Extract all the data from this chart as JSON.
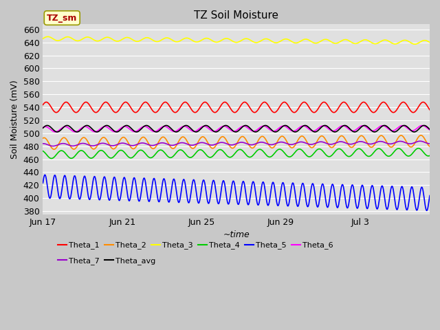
{
  "title": "TZ Soil Moisture",
  "ylabel": "Soil Moisture (mV)",
  "xlabel": "~time",
  "ylim": [
    375,
    668
  ],
  "yticks": [
    380,
    400,
    420,
    440,
    460,
    480,
    500,
    520,
    540,
    560,
    580,
    600,
    620,
    640,
    660
  ],
  "bg_color": "#e0e0e0",
  "fig_bg": "#c8c8c8",
  "n_days": 19.5,
  "series": [
    {
      "name": "Theta_1",
      "color": "#ff0000",
      "base": 540,
      "amp": 8,
      "freq": 1.0,
      "trend": 0.0,
      "phase": 0.5
    },
    {
      "name": "Theta_2",
      "color": "#ff8c00",
      "base": 484,
      "amp": 9,
      "freq": 1.0,
      "trend": 0.2,
      "phase": 1.2
    },
    {
      "name": "Theta_3",
      "color": "#ffff00",
      "base": 646,
      "amp": 3,
      "freq": 1.0,
      "trend": -0.3,
      "phase": 0.0
    },
    {
      "name": "Theta_4",
      "color": "#00cc00",
      "base": 467,
      "amp": 6,
      "freq": 1.0,
      "trend": 0.2,
      "phase": 2.0
    },
    {
      "name": "Theta_5",
      "color": "#0000ff",
      "base": 418,
      "amp": 18,
      "freq": 2.0,
      "trend": -1.0,
      "phase": 0.3
    },
    {
      "name": "Theta_6",
      "color": "#ff00ff",
      "base": 506,
      "amp": 4,
      "freq": 1.0,
      "trend": 0.1,
      "phase": 0.8
    },
    {
      "name": "Theta_7",
      "color": "#9900cc",
      "base": 482,
      "amp": 2,
      "freq": 1.0,
      "trend": 0.2,
      "phase": 1.5
    },
    {
      "name": "Theta_avg",
      "color": "#000000",
      "base": 507,
      "amp": 5,
      "freq": 1.0,
      "trend": 0.0,
      "phase": 0.2
    }
  ],
  "xtick_labels": [
    "Jun 17",
    "Jun 21",
    "Jun 25",
    "Jun 29",
    "Jul 3"
  ],
  "xtick_days": [
    0,
    4,
    8,
    12,
    16
  ],
  "legend_label": "TZ_sm",
  "legend_box_color": "#ffffcc",
  "legend_text_color": "#aa0000"
}
